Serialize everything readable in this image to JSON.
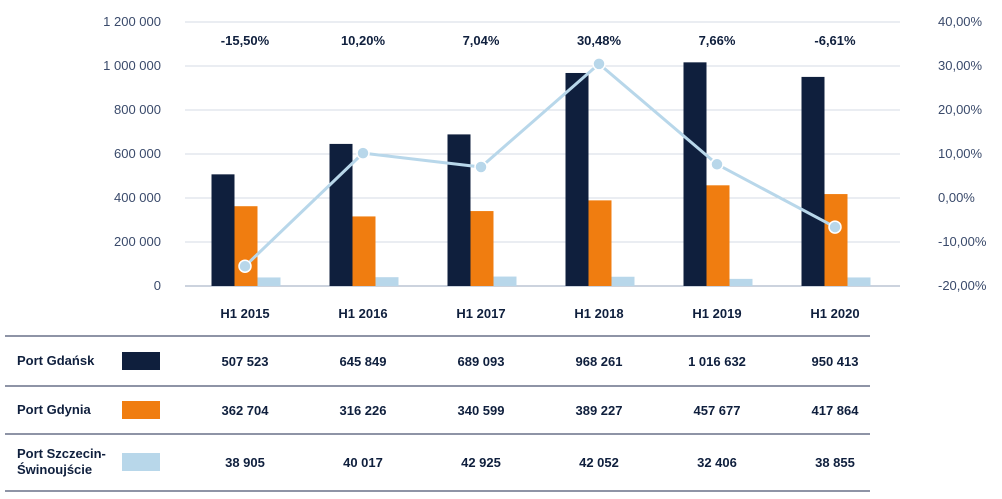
{
  "chart_data": {
    "type": "bar",
    "categories": [
      "H1 2015",
      "H1 2016",
      "H1 2017",
      "H1 2018",
      "H1 2019",
      "H1 2020"
    ],
    "series": [
      {
        "name": "Port Gdańsk",
        "name_lines": [
          "Port Gdańsk"
        ],
        "color": "#0f1f3d",
        "values": [
          507523,
          645849,
          689093,
          968261,
          1016632,
          950413
        ],
        "labels": [
          "507 523",
          "645 849",
          "689 093",
          "968 261",
          "1 016 632",
          "950 413"
        ]
      },
      {
        "name": "Port Gdynia",
        "name_lines": [
          "Port Gdynia"
        ],
        "color": "#f07d10",
        "values": [
          362704,
          316226,
          340599,
          389227,
          457677,
          417864
        ],
        "labels": [
          "362 704",
          "316 226",
          "340 599",
          "389 227",
          "457 677",
          "417 864"
        ]
      },
      {
        "name": "Port Szczecin-Świnoujście",
        "name_lines": [
          "Port Szczecin-",
          "Świnoujście"
        ],
        "color": "#b8d7ea",
        "values": [
          38905,
          40017,
          42925,
          42052,
          32406,
          38855
        ],
        "labels": [
          "38 905",
          "40 017",
          "42 925",
          "42 052",
          "32 406",
          "38 855"
        ]
      }
    ],
    "line": {
      "color": "#b8d7ea",
      "values": [
        -15.5,
        10.2,
        7.04,
        30.48,
        7.66,
        -6.61
      ],
      "labels": [
        "-15,50%",
        "10,20%",
        "7,04%",
        "30,48%",
        "7,66%",
        "-6,61%"
      ]
    },
    "y_left": {
      "range": [
        0,
        1200000
      ],
      "ticks": [
        0,
        200000,
        400000,
        600000,
        800000,
        1000000,
        1200000
      ],
      "tick_labels": [
        "0",
        "200 000",
        "400 000",
        "600 000",
        "800 000",
        "1 000 000",
        "1 200 000"
      ]
    },
    "y_right": {
      "range": [
        -20,
        40
      ],
      "ticks": [
        -20,
        -10,
        0,
        10,
        20,
        30,
        40
      ],
      "tick_labels": [
        "-20,00%",
        "-10,00%",
        "0,00%",
        "10,00%",
        "20,00%",
        "30,00%",
        "40,00%"
      ]
    },
    "grid": true,
    "legend": "table-below"
  }
}
